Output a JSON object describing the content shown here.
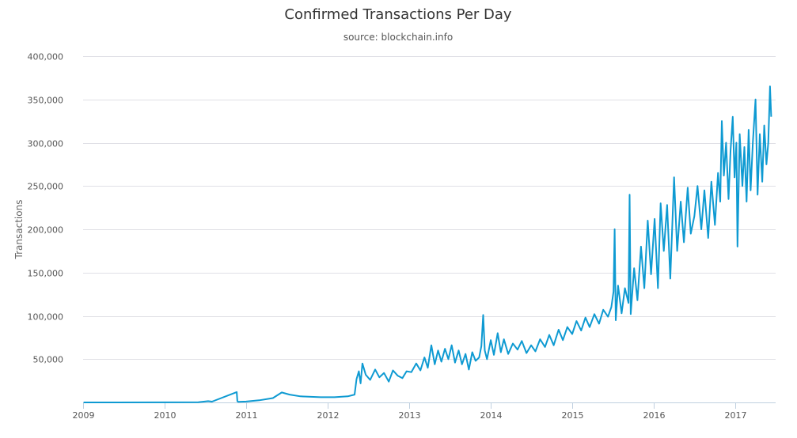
{
  "chart_data": {
    "type": "line",
    "title": "Confirmed Transactions Per Day",
    "subtitle": "source: blockchain.info",
    "xlabel": "",
    "ylabel": "Transactions",
    "xlim": [
      "2009-01-01",
      "2017-06-30"
    ],
    "ylim": [
      0,
      400000
    ],
    "grid": true,
    "legend": "none",
    "color": "#0e9ad2",
    "x_ticks": [
      "2009",
      "2010",
      "2011",
      "2012",
      "2013",
      "2014",
      "2015",
      "2016",
      "2017"
    ],
    "y_ticks": [
      {
        "value": 50000,
        "label": "50,000"
      },
      {
        "value": 100000,
        "label": "100,000"
      },
      {
        "value": 150000,
        "label": "150,000"
      },
      {
        "value": 200000,
        "label": "200,000"
      },
      {
        "value": 250000,
        "label": "250,000"
      },
      {
        "value": 300000,
        "label": "300,000"
      },
      {
        "value": 350000,
        "label": "350,000"
      },
      {
        "value": 400000,
        "label": "400,000"
      }
    ],
    "series": [
      {
        "x": [
          "2009-01-03",
          "2009-06-01",
          "2010-01-01",
          "2010-06-01",
          "2010-07-15",
          "2010-08-01",
          "2010-11-20",
          "2010-11-23",
          "2010-11-27",
          "2011-01-01",
          "2011-03-01",
          "2011-05-01",
          "2011-06-10",
          "2011-07-15",
          "2011-09-01",
          "2011-12-01",
          "2012-02-01",
          "2012-04-01",
          "2012-05-01",
          "2012-05-10",
          "2012-05-20",
          "2012-05-28",
          "2012-06-05",
          "2012-06-20",
          "2012-07-10",
          "2012-08-01",
          "2012-08-20",
          "2012-09-10",
          "2012-10-01",
          "2012-10-20",
          "2012-11-10",
          "2012-12-01",
          "2012-12-20",
          "2013-01-10",
          "2013-02-01",
          "2013-02-20",
          "2013-03-10",
          "2013-03-25",
          "2013-04-10",
          "2013-04-25",
          "2013-05-10",
          "2013-05-25",
          "2013-06-10",
          "2013-06-25",
          "2013-07-10",
          "2013-07-25",
          "2013-08-10",
          "2013-08-25",
          "2013-09-10",
          "2013-09-25",
          "2013-10-10",
          "2013-10-25",
          "2013-11-10",
          "2013-11-20",
          "2013-11-28",
          "2013-12-05",
          "2013-12-15",
          "2014-01-01",
          "2014-01-15",
          "2014-02-01",
          "2014-02-15",
          "2014-03-01",
          "2014-03-20",
          "2014-04-10",
          "2014-05-01",
          "2014-05-20",
          "2014-06-10",
          "2014-07-01",
          "2014-07-20",
          "2014-08-10",
          "2014-09-01",
          "2014-09-20",
          "2014-10-10",
          "2014-11-01",
          "2014-11-20",
          "2014-12-10",
          "2015-01-01",
          "2015-01-20",
          "2015-02-10",
          "2015-03-01",
          "2015-03-20",
          "2015-04-10",
          "2015-05-01",
          "2015-05-20",
          "2015-06-10",
          "2015-06-25",
          "2015-07-05",
          "2015-07-10",
          "2015-07-15",
          "2015-07-25",
          "2015-08-10",
          "2015-08-25",
          "2015-09-10",
          "2015-09-15",
          "2015-09-20",
          "2015-10-05",
          "2015-10-20",
          "2015-11-05",
          "2015-11-20",
          "2015-12-05",
          "2015-12-20",
          "2016-01-05",
          "2016-01-20",
          "2016-02-01",
          "2016-02-15",
          "2016-03-01",
          "2016-03-15",
          "2016-04-01",
          "2016-04-15",
          "2016-05-01",
          "2016-05-15",
          "2016-06-01",
          "2016-06-15",
          "2016-07-01",
          "2016-07-15",
          "2016-08-01",
          "2016-08-15",
          "2016-09-01",
          "2016-09-15",
          "2016-10-01",
          "2016-10-15",
          "2016-10-25",
          "2016-11-01",
          "2016-11-10",
          "2016-11-20",
          "2016-12-01",
          "2016-12-10",
          "2016-12-20",
          "2016-12-28",
          "2017-01-05",
          "2017-01-10",
          "2017-01-20",
          "2017-02-01",
          "2017-02-10",
          "2017-02-20",
          "2017-03-01",
          "2017-03-10",
          "2017-03-20",
          "2017-04-01",
          "2017-04-10",
          "2017-04-20",
          "2017-05-01",
          "2017-05-10",
          "2017-05-20",
          "2017-05-28",
          "2017-06-05",
          "2017-06-10"
        ],
        "y": [
          0,
          0,
          100,
          250,
          1500,
          900,
          12000,
          1500,
          700,
          1000,
          2500,
          5000,
          11500,
          9000,
          7000,
          6000,
          6000,
          7000,
          9000,
          27000,
          36000,
          22000,
          45000,
          32000,
          26000,
          38000,
          29000,
          34000,
          24000,
          37000,
          31000,
          28000,
          36000,
          35000,
          45000,
          37000,
          52000,
          40000,
          66000,
          44000,
          60000,
          47000,
          62000,
          50000,
          66000,
          46000,
          60000,
          44000,
          56000,
          38000,
          58000,
          48000,
          52000,
          65000,
          101000,
          60000,
          50000,
          72000,
          55000,
          80000,
          58000,
          73000,
          56000,
          68000,
          61000,
          71000,
          57000,
          66000,
          59000,
          73000,
          64000,
          78000,
          66000,
          84000,
          72000,
          87000,
          79000,
          94000,
          83000,
          98000,
          87000,
          102000,
          91000,
          107000,
          99000,
          110000,
          128000,
          200000,
          95000,
          135000,
          103000,
          132000,
          115000,
          240000,
          102000,
          155000,
          118000,
          180000,
          132000,
          210000,
          148000,
          212000,
          132000,
          230000,
          175000,
          228000,
          143000,
          260000,
          175000,
          232000,
          185000,
          248000,
          195000,
          215000,
          250000,
          200000,
          245000,
          190000,
          255000,
          205000,
          265000,
          232000,
          325000,
          262000,
          300000,
          235000,
          290000,
          330000,
          260000,
          300000,
          180000,
          310000,
          250000,
          295000,
          232000,
          315000,
          245000,
          300000,
          350000,
          240000,
          310000,
          255000,
          320000,
          275000,
          300000,
          365000,
          330000
        ]
      }
    ]
  }
}
